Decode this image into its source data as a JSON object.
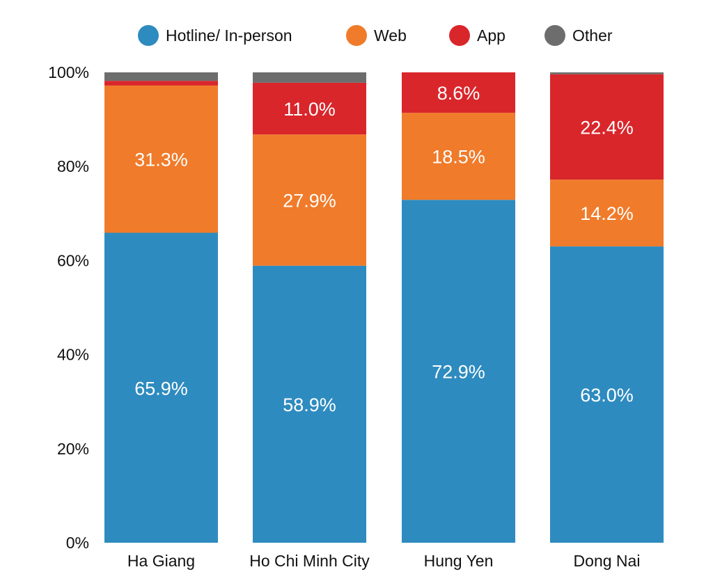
{
  "chart_data": {
    "type": "bar",
    "stacked": true,
    "categories": [
      "Ha Giang",
      "Ho Chi Minh City",
      "Hung Yen",
      "Dong Nai"
    ],
    "series": [
      {
        "name": "Hotline/ In-person",
        "color": "#2e8bbf",
        "values": [
          65.9,
          58.9,
          72.9,
          63.0
        ],
        "labels": [
          "65.9%",
          "58.9%",
          "72.9%",
          "63.0%"
        ]
      },
      {
        "name": "Web",
        "color": "#f07b2a",
        "values": [
          31.3,
          27.9,
          18.5,
          14.2
        ],
        "labels": [
          "31.3%",
          "27.9%",
          "18.5%",
          "14.2%"
        ]
      },
      {
        "name": "App",
        "color": "#d9262b",
        "values": [
          1.0,
          11.0,
          8.6,
          22.4
        ],
        "labels": [
          "",
          "11.0%",
          "8.6%",
          "22.4%"
        ]
      },
      {
        "name": "Other",
        "color": "#6d6d6d",
        "values": [
          1.8,
          2.2,
          0.0,
          0.4
        ],
        "labels": [
          "",
          "",
          "",
          ""
        ]
      }
    ],
    "yticks": [
      "0%",
      "20%",
      "40%",
      "60%",
      "80%",
      "100%"
    ],
    "ylim": [
      0,
      100
    ],
    "grid": false,
    "legend": "top-center"
  }
}
